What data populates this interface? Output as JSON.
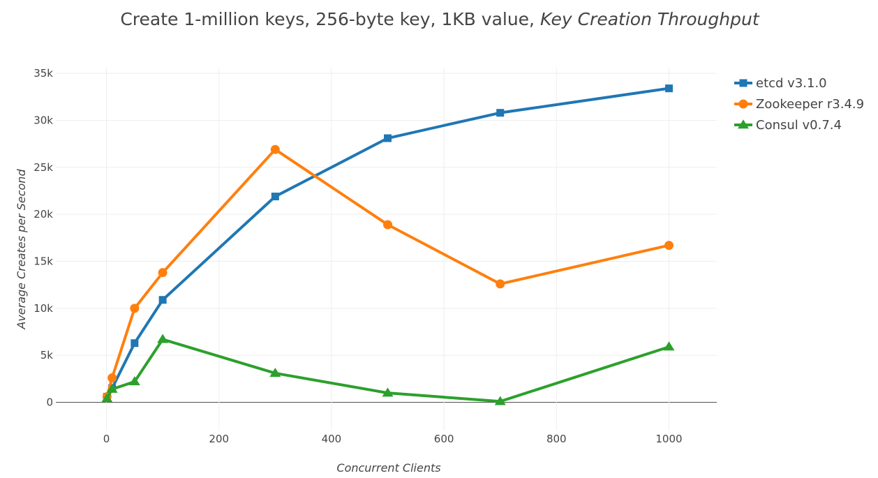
{
  "title": {
    "main": "Create 1-million keys, 256-byte key, 1KB value, ",
    "italic": "Key Creation Throughput"
  },
  "chart_data": {
    "type": "line",
    "title": "Create 1-million keys, 256-byte key, 1KB value, Key Creation Throughput",
    "xlabel": "Concurrent Clients",
    "ylabel": "Average Creates per Second",
    "xlim": [
      -90,
      1085
    ],
    "ylim": [
      -3000,
      35600
    ],
    "x_ticks": [
      0,
      200,
      400,
      600,
      800,
      1000
    ],
    "x_tick_labels": [
      "0",
      "200",
      "400",
      "600",
      "800",
      "1000"
    ],
    "y_ticks": [
      0,
      5000,
      10000,
      15000,
      20000,
      25000,
      30000,
      35000
    ],
    "y_tick_labels": [
      "0",
      "5k",
      "10k",
      "15k",
      "20k",
      "25k",
      "30k",
      "35k"
    ],
    "grid": true,
    "legend_position": "top-right",
    "series": [
      {
        "name": "etcd v3.1.0",
        "color": "#1f77b4",
        "marker": "square",
        "x": [
          1,
          10,
          50,
          100,
          300,
          500,
          700,
          1000
        ],
        "y": [
          600,
          1500,
          6300,
          10900,
          21900,
          28100,
          30800,
          33400
        ]
      },
      {
        "name": "Zookeeper r3.4.9",
        "color": "#ff7f0e",
        "marker": "circle",
        "x": [
          1,
          10,
          50,
          100,
          300,
          500,
          700,
          1000
        ],
        "y": [
          600,
          2600,
          10000,
          13800,
          26900,
          18900,
          12600,
          16700
        ]
      },
      {
        "name": "Consul v0.7.4",
        "color": "#2ca02c",
        "marker": "triangle",
        "x": [
          1,
          10,
          50,
          100,
          300,
          500,
          700,
          1000
        ],
        "y": [
          400,
          1400,
          2200,
          6700,
          3100,
          1000,
          100,
          5900
        ]
      }
    ]
  }
}
